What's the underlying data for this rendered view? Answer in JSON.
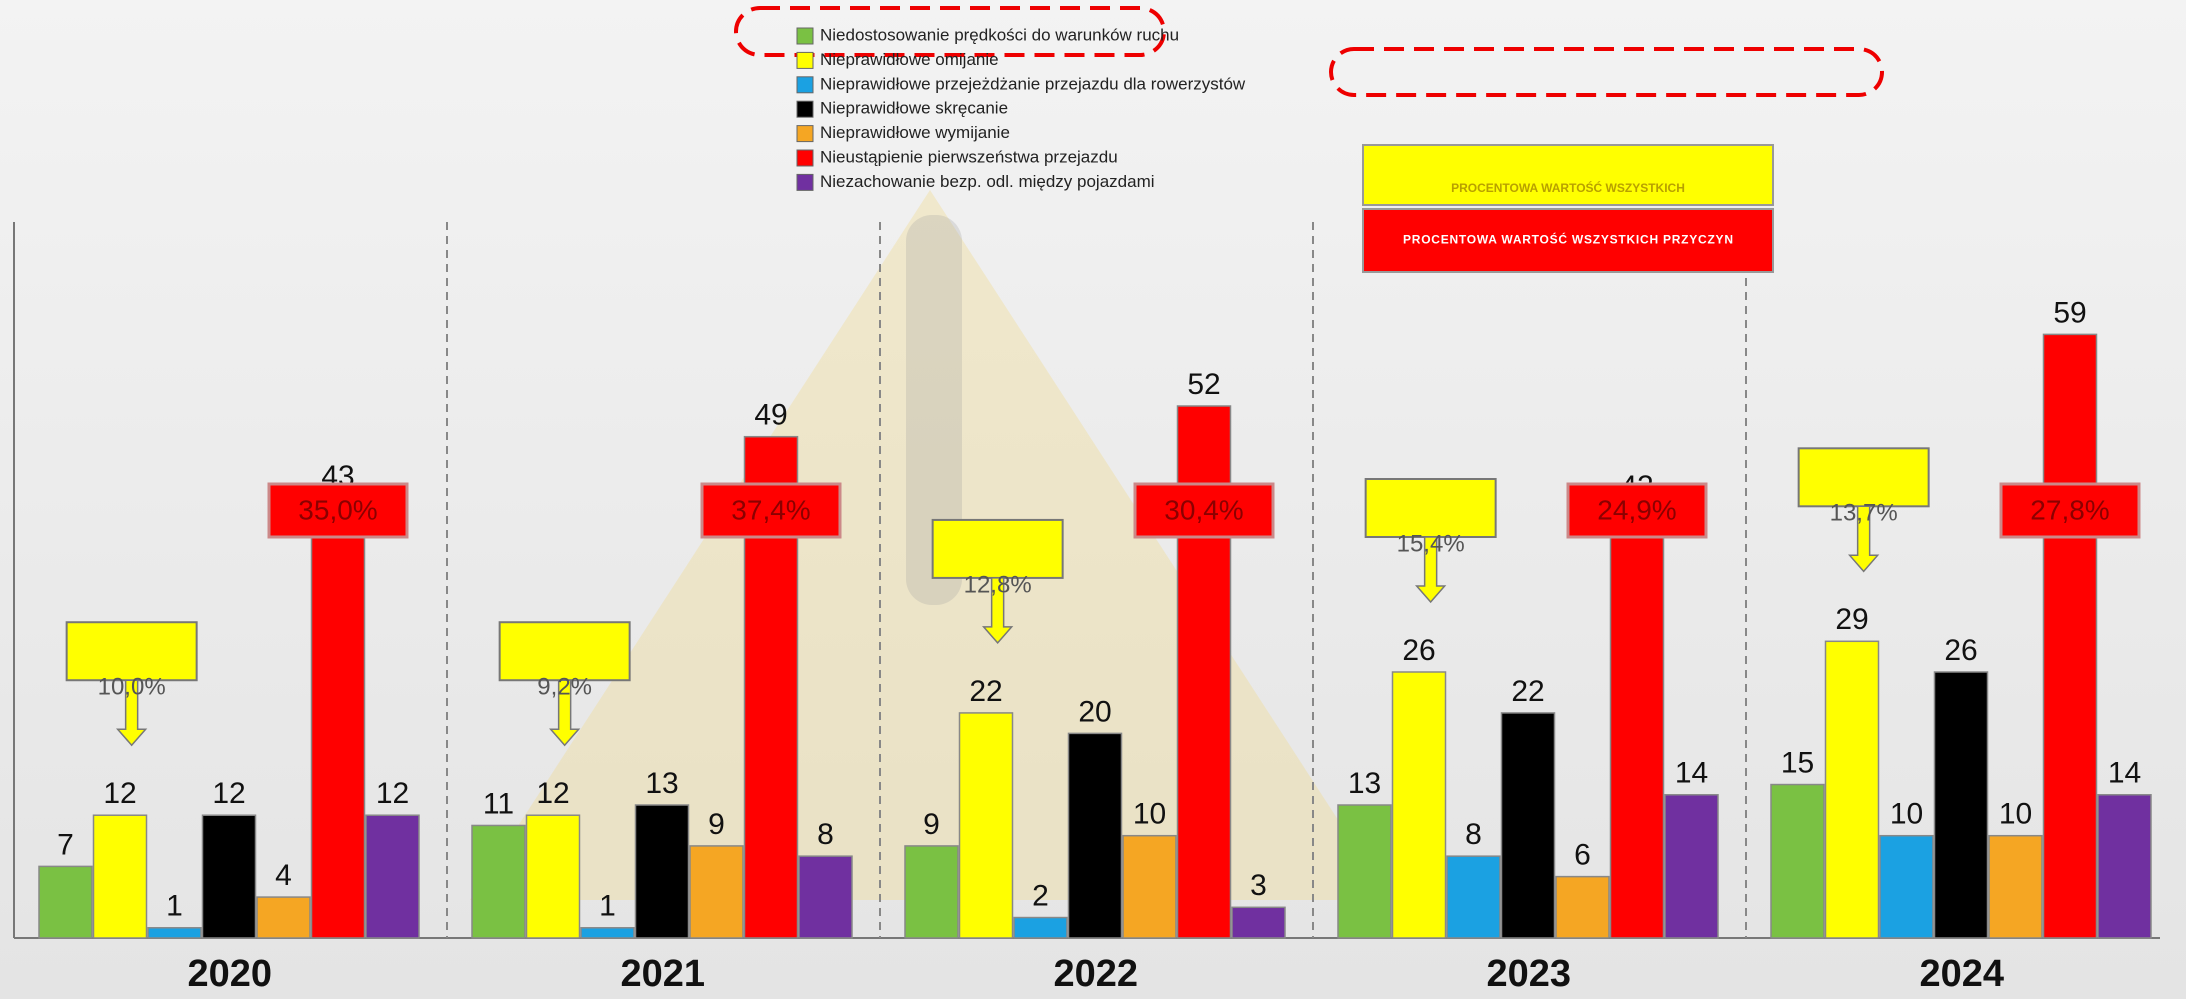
{
  "chart_data": {
    "type": "bar",
    "categories": [
      "2020",
      "2021",
      "2022",
      "2023",
      "2024"
    ],
    "series": [
      {
        "name": "Niedostosowanie prędkości do warunków ruchu",
        "color": "#7ac143",
        "values": [
          7,
          11,
          9,
          13,
          15
        ]
      },
      {
        "name": "Nieprawidłowe omijanie",
        "color": "#ffff00",
        "values": [
          12,
          12,
          22,
          26,
          29
        ]
      },
      {
        "name": "Nieprawidłowe przejeżdżanie przejazdu dla rowerzystów",
        "color": "#1ba1e2",
        "values": [
          1,
          1,
          2,
          8,
          10
        ]
      },
      {
        "name": "Nieprawidłowe skręcanie",
        "color": "#000000",
        "values": [
          12,
          13,
          20,
          22,
          26
        ]
      },
      {
        "name": "Nieprawidłowe wymijanie",
        "color": "#f5a623",
        "values": [
          4,
          9,
          10,
          6,
          10
        ]
      },
      {
        "name": "Nieustąpienie pierwszeństwa przejazdu",
        "color": "#ff0000",
        "values": [
          43,
          49,
          52,
          42,
          59
        ]
      },
      {
        "name": "Niezachowanie bezp. odl. między pojazdami",
        "color": "#7030a0",
        "values": [
          12,
          8,
          3,
          14,
          14
        ]
      }
    ],
    "ylim": [
      0,
      65
    ],
    "share_labels": [
      {
        "name": "PROCENTOWA WARTOŚĆ WSZYSTKICH",
        "color": "#ffff00",
        "labels": [
          "10,0%",
          "9,2%",
          "12,8%",
          "15,4%",
          "13,7%"
        ]
      },
      {
        "name": "PROCENTOWA WARTOŚĆ WSZYSTKICH PRZYCZYN",
        "color": "#ff0000",
        "labels": [
          "35,0%",
          "37,4%",
          "30,4%",
          "24,9%",
          "27,8%"
        ]
      }
    ]
  }
}
